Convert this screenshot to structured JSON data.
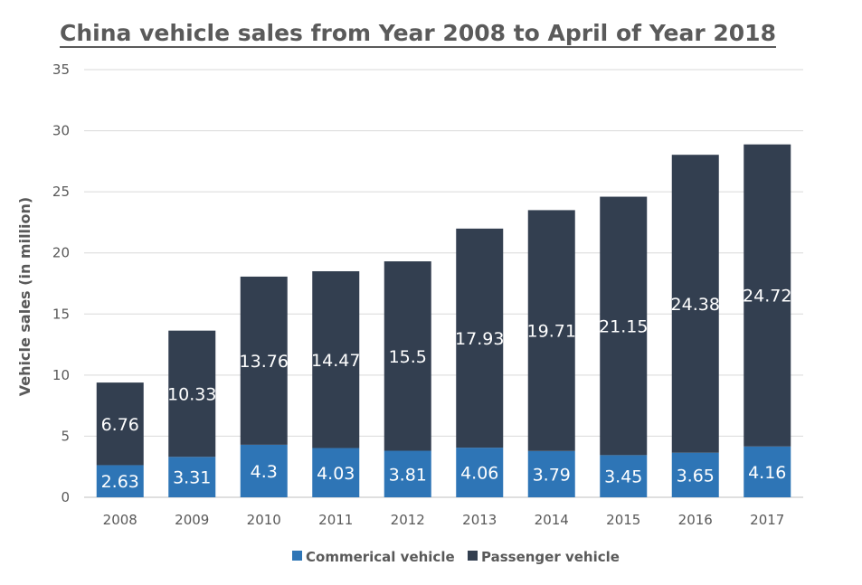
{
  "chart_data": {
    "type": "bar",
    "stacked": true,
    "title": "China vehicle sales from Year 2008 to April of Year 2018",
    "xlabel": "",
    "ylabel": "Vehicle sales (in million)",
    "ylim": [
      0,
      35
    ],
    "yticks": [
      0,
      5,
      10,
      15,
      20,
      25,
      30,
      35
    ],
    "grid": true,
    "legend_position": "bottom",
    "categories": [
      "2008",
      "2009",
      "2010",
      "2011",
      "2012",
      "2013",
      "2014",
      "2015",
      "2016",
      "2017"
    ],
    "series": [
      {
        "name": "Commerical vehicle",
        "color": "#2e75b6",
        "values": [
          2.63,
          3.31,
          4.3,
          4.03,
          3.81,
          4.06,
          3.79,
          3.45,
          3.65,
          4.16
        ]
      },
      {
        "name": "Passenger vehicle",
        "color": "#333f50",
        "values": [
          6.76,
          10.33,
          13.76,
          14.47,
          15.5,
          17.93,
          19.71,
          21.15,
          24.38,
          24.72
        ]
      }
    ]
  }
}
